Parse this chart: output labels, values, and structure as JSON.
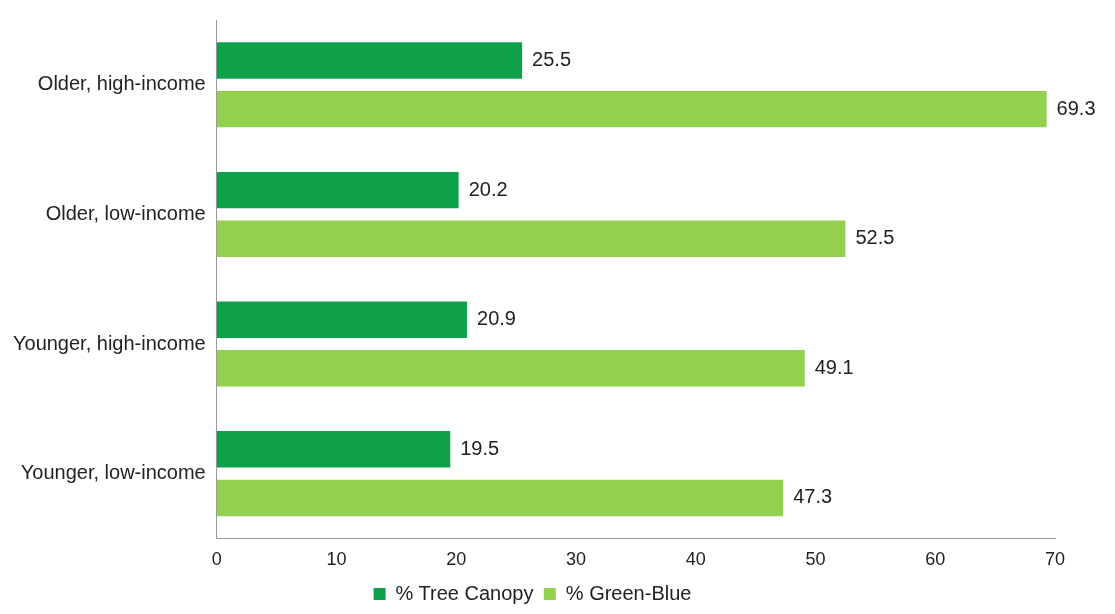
{
  "chart_data": {
    "type": "bar",
    "orientation": "horizontal",
    "categories": [
      "Older, high-income",
      "Older, low-income",
      "Younger, high-income",
      "Younger, low-income"
    ],
    "series": [
      {
        "name": "% Tree Canopy",
        "color": "#0fa04a",
        "values": [
          25.5,
          20.2,
          20.9,
          19.5
        ]
      },
      {
        "name": "% Green-Blue",
        "color": "#92d050",
        "values": [
          69.3,
          52.5,
          49.1,
          47.3
        ]
      }
    ],
    "xlim": [
      0,
      70
    ],
    "xticks": [
      0,
      10,
      20,
      30,
      40,
      50,
      60,
      70
    ],
    "grid": false,
    "legend": "bottom",
    "data_labels": true
  }
}
